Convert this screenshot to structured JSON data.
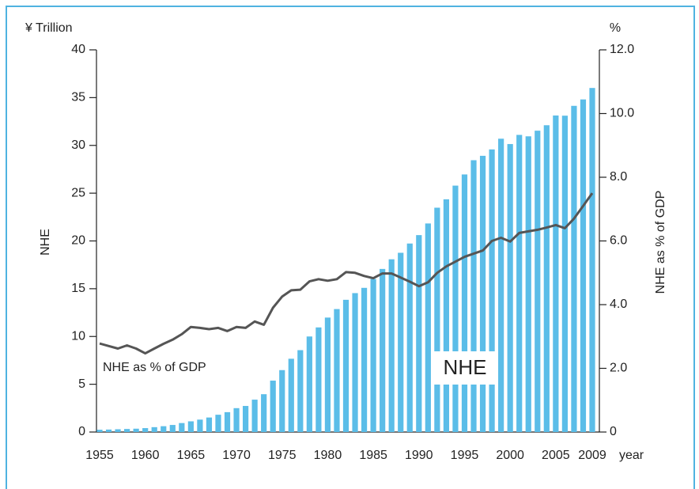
{
  "chart_data": {
    "type": "bar-line",
    "y_label_unit": "¥ Trillion",
    "y_label": "NHE",
    "y2_label_unit": "%",
    "y2_label": "NHE as % of GDP",
    "x_label": "year",
    "categories": [
      "1955",
      null,
      null,
      null,
      null,
      "1960",
      null,
      null,
      null,
      null,
      "1965",
      null,
      null,
      null,
      null,
      "1970",
      null,
      null,
      null,
      null,
      "1975",
      null,
      null,
      null,
      null,
      "1980",
      null,
      null,
      null,
      null,
      "1985",
      null,
      null,
      null,
      null,
      "1990",
      null,
      null,
      null,
      null,
      "1995",
      null,
      null,
      null,
      null,
      "2000",
      null,
      null,
      null,
      null,
      "2005",
      null,
      null,
      null,
      "2009"
    ],
    "series": [
      {
        "name": "NHE",
        "color": "#5bbde8",
        "values": [
          0.24,
          0.26,
          0.29,
          0.32,
          0.35,
          0.41,
          0.51,
          0.61,
          0.74,
          0.94,
          1.12,
          1.3,
          1.52,
          1.81,
          2.08,
          2.5,
          2.73,
          3.39,
          3.96,
          5.38,
          6.48,
          7.67,
          8.57,
          10.0,
          10.95,
          11.98,
          12.87,
          13.84,
          14.54,
          15.09,
          16.02,
          17.07,
          18.08,
          18.76,
          19.73,
          20.61,
          21.83,
          23.48,
          24.36,
          25.79,
          26.96,
          28.45,
          28.91,
          29.58,
          30.7,
          30.14,
          31.1,
          30.95,
          31.54,
          32.11,
          33.13,
          33.11,
          34.14,
          34.81,
          36.01
        ]
      },
      {
        "name": "NHE as % of GDP",
        "color": "#555555",
        "axis": "y2",
        "values": [
          2.78,
          2.7,
          2.62,
          2.72,
          2.62,
          2.47,
          2.62,
          2.77,
          2.9,
          3.07,
          3.3,
          3.27,
          3.23,
          3.27,
          3.17,
          3.3,
          3.27,
          3.47,
          3.37,
          3.9,
          4.25,
          4.45,
          4.47,
          4.73,
          4.8,
          4.75,
          4.8,
          5.02,
          5.0,
          4.9,
          4.83,
          4.98,
          4.98,
          4.85,
          4.72,
          4.58,
          4.7,
          5.0,
          5.2,
          5.35,
          5.5,
          5.6,
          5.7,
          6.0,
          6.1,
          5.98,
          6.25,
          6.3,
          6.35,
          6.42,
          6.5,
          6.4,
          6.7,
          7.1,
          7.5
        ]
      }
    ],
    "ylim": [
      0,
      40
    ],
    "yticks": [
      0,
      5,
      10,
      15,
      20,
      25,
      30,
      35,
      40
    ],
    "y2lim": [
      0,
      12
    ],
    "y2ticks": [
      0,
      {
        "value": 2,
        "label": "2.0"
      },
      {
        "value": 4,
        "label": "4.0"
      },
      {
        "value": 6,
        "label": "6.0"
      },
      {
        "value": 8,
        "label": "8.0"
      },
      {
        "value": 10,
        "label": "10.0"
      },
      {
        "value": 12,
        "label": "12.0"
      }
    ]
  }
}
